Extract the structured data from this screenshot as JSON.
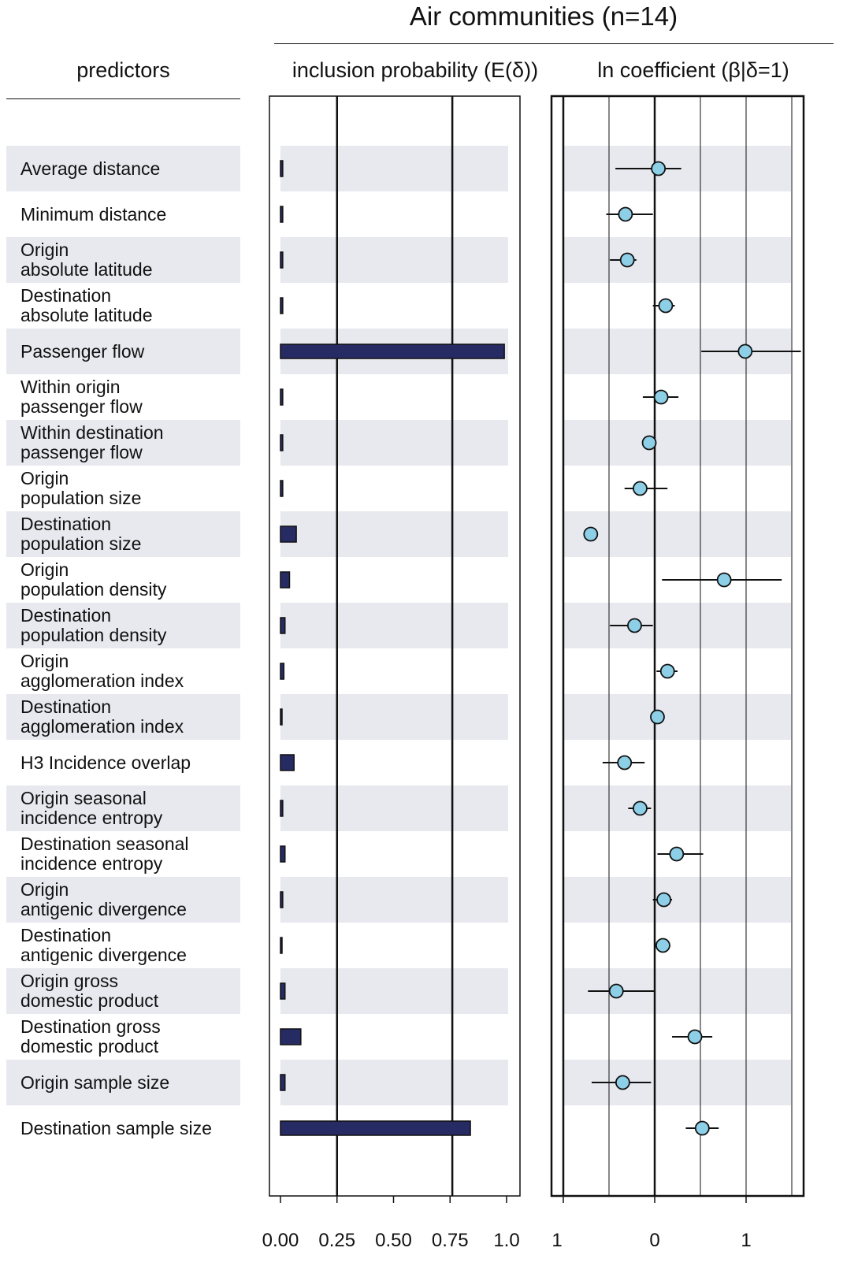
{
  "title": "Air communities (n=14)",
  "headers": {
    "predictors": "predictors",
    "inclusion": "inclusion probability (E(δ))",
    "coefficient": "ln coefficient (β|δ=1)"
  },
  "colors": {
    "bar_fill": "#272b63",
    "point_fill": "#8ecfe8",
    "stripe": "#e8e9ef"
  },
  "chart_data": [
    {
      "type": "bar",
      "orientation": "horizontal",
      "title": "inclusion probability (E(δ))",
      "xlim": [
        0,
        1
      ],
      "xticks": [
        "0.00",
        "0.25",
        "0.50",
        "0.75",
        "1.0"
      ],
      "reference_lines": [
        0.25,
        0.76
      ],
      "categories": [
        "Average distance",
        "Minimum distance",
        "Origin\nabsolute latitude",
        "Destination\nabsolute latitude",
        "Passenger flow",
        "Within origin\npassenger flow",
        "Within destination\npassenger flow",
        "Origin\npopulation size",
        "Destination\npopulation size",
        "Origin\npopulation density",
        "Destination\npopulation density",
        "Origin\nagglomeration index",
        "Destination\nagglomeration index",
        "H3 Incidence overlap",
        "Origin seasonal\nincidence entropy",
        "Destination seasonal\nincidence entropy",
        "Origin\nantigenic divergence",
        "Destination\nantigenic divergence",
        "Origin gross\ndomestic product",
        "Destination gross\ndomestic product",
        "Origin sample size",
        "Destination sample size"
      ],
      "values": [
        0.01,
        0.01,
        0.01,
        0.01,
        0.99,
        0.01,
        0.01,
        0.01,
        0.07,
        0.04,
        0.02,
        0.015,
        0.005,
        0.06,
        0.01,
        0.02,
        0.01,
        0.005,
        0.02,
        0.09,
        0.02,
        0.84
      ]
    },
    {
      "type": "scatter",
      "title": "ln coefficient (β|δ=1)",
      "xlim": [
        -1.0,
        1.6
      ],
      "xticks": [
        "1",
        "0",
        "1"
      ],
      "xtick_values": [
        -1,
        0,
        1
      ],
      "gridlines": [
        -1.0,
        -0.5,
        0,
        0.5,
        1.0,
        1.5
      ],
      "points": [
        {
          "estimate": 0.04,
          "lower": -0.43,
          "upper": 0.29
        },
        {
          "estimate": -0.32,
          "lower": -0.53,
          "upper": -0.02
        },
        {
          "estimate": -0.3,
          "lower": -0.49,
          "upper": -0.2
        },
        {
          "estimate": 0.12,
          "lower": -0.02,
          "upper": 0.22
        },
        {
          "estimate": 0.99,
          "lower": 0.51,
          "upper": 1.6
        },
        {
          "estimate": 0.07,
          "lower": -0.13,
          "upper": 0.26
        },
        {
          "estimate": -0.06,
          "lower": -0.06,
          "upper": -0.06
        },
        {
          "estimate": -0.16,
          "lower": -0.33,
          "upper": 0.14
        },
        {
          "estimate": -0.7,
          "lower": -0.7,
          "upper": -0.7
        },
        {
          "estimate": 0.76,
          "lower": 0.08,
          "upper": 1.39
        },
        {
          "estimate": -0.22,
          "lower": -0.49,
          "upper": -0.02
        },
        {
          "estimate": 0.14,
          "lower": 0.02,
          "upper": 0.25
        },
        {
          "estimate": 0.03,
          "lower": 0.03,
          "upper": 0.03
        },
        {
          "estimate": -0.33,
          "lower": -0.57,
          "upper": -0.11
        },
        {
          "estimate": -0.16,
          "lower": -0.29,
          "upper": -0.04
        },
        {
          "estimate": 0.24,
          "lower": 0.03,
          "upper": 0.53
        },
        {
          "estimate": 0.1,
          "lower": -0.02,
          "upper": 0.19
        },
        {
          "estimate": 0.09,
          "lower": 0.09,
          "upper": 0.09
        },
        {
          "estimate": -0.42,
          "lower": -0.73,
          "upper": 0.0
        },
        {
          "estimate": 0.44,
          "lower": 0.19,
          "upper": 0.63
        },
        {
          "estimate": -0.35,
          "lower": -0.69,
          "upper": -0.04
        },
        {
          "estimate": 0.52,
          "lower": 0.34,
          "upper": 0.7
        }
      ]
    }
  ]
}
